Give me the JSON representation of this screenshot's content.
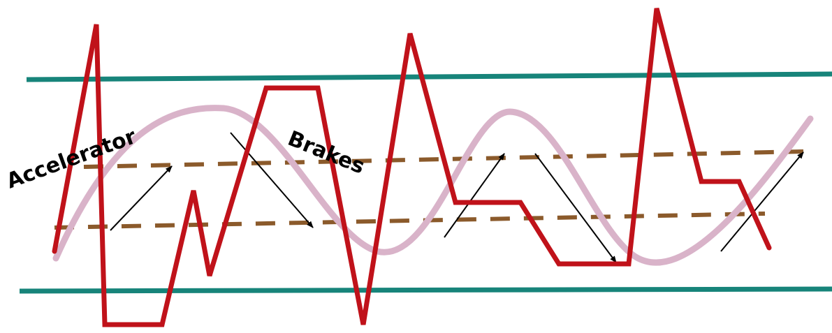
{
  "labels": {
    "accelerator": "Accelerator",
    "brakes": "Brakes"
  },
  "colors": {
    "background": "#ffffff",
    "bound_lines": "#17847a",
    "threshold_dashes": "#8b5a2b",
    "sine_wave": "#d9b3c9",
    "erratic_line": "#c0121a",
    "arrows": "#000000",
    "text": "#000000"
  },
  "elements": {
    "bound_lines": "upper and lower solid teal horizontal lines",
    "threshold_lines": "two dashed brown horizontal lines",
    "smooth_wave": "light mauve sinusoidal curve",
    "erratic_wave": "dark red jagged polyline",
    "arrows": "thin black arrows showing upward and downward adjustments"
  }
}
